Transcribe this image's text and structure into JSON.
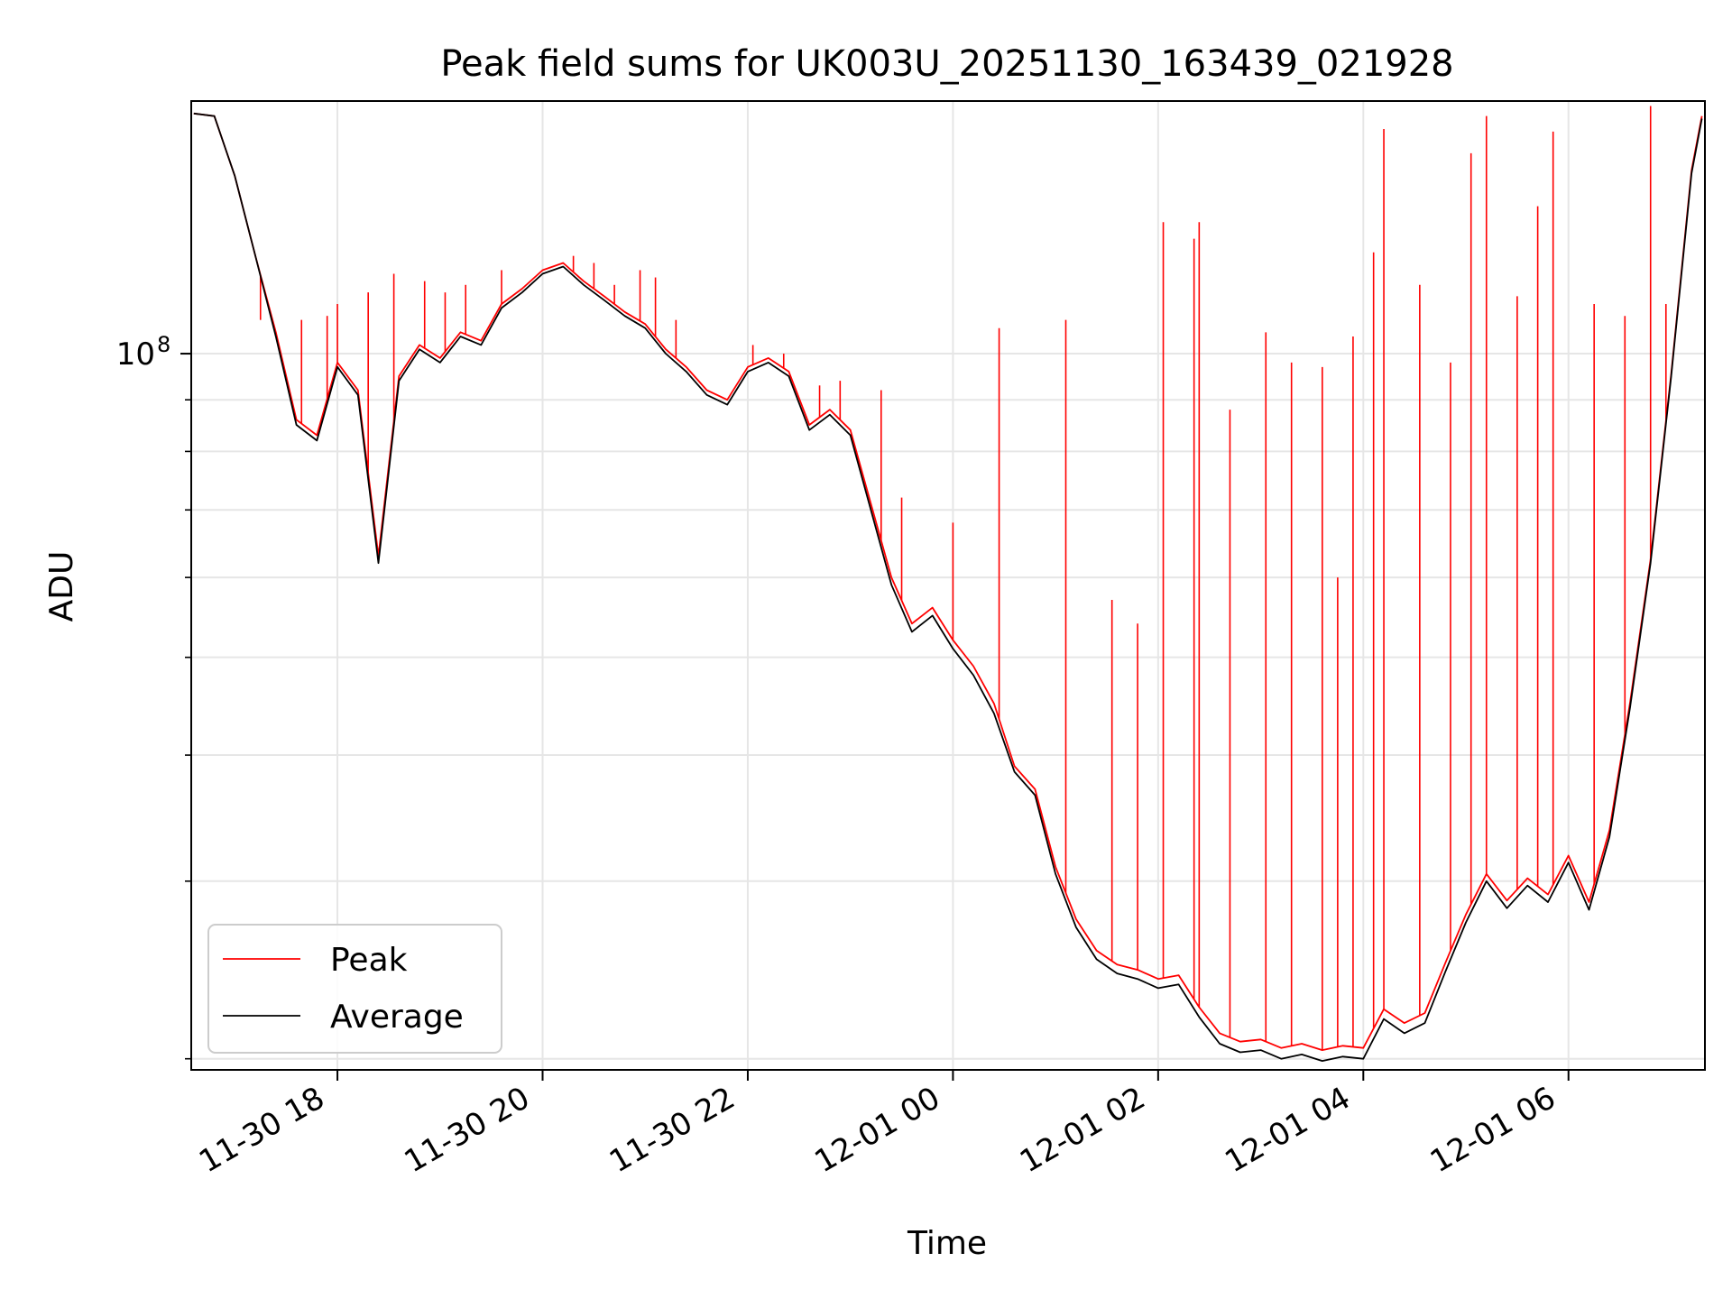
{
  "chart_data": {
    "type": "line",
    "title": "Peak field sums for UK003U_20251130_163439_021928",
    "xlabel": "Time",
    "ylabel": "ADU",
    "yscale": "log",
    "x_unit": "hours since 2025-11-30 00:00",
    "xlim": [
      16.575,
      31.33
    ],
    "ylim": [
      19500000,
      178000000
    ],
    "grid": true,
    "legend_position": "lower-left",
    "x_ticks": [
      {
        "value": 18,
        "label": "11-30 18"
      },
      {
        "value": 20,
        "label": "11-30 20"
      },
      {
        "value": 22,
        "label": "11-30 22"
      },
      {
        "value": 24,
        "label": "12-01 00"
      },
      {
        "value": 26,
        "label": "12-01 02"
      },
      {
        "value": 28,
        "label": "12-01 04"
      },
      {
        "value": 30,
        "label": "12-01 06"
      }
    ],
    "y_major_ticks": [
      {
        "value": 100000000,
        "base": "10",
        "exponent": "8"
      }
    ],
    "y_minor_ticks": [
      20000000,
      30000000,
      40000000,
      50000000,
      60000000,
      70000000,
      80000000,
      90000000,
      200000000
    ],
    "series": [
      {
        "name": "Peak",
        "color": "#ff0000",
        "x": [
          16.6,
          16.8,
          17.0,
          17.2,
          17.4,
          17.6,
          17.8,
          18.0,
          18.2,
          18.4,
          18.6,
          18.8,
          19.0,
          19.2,
          19.4,
          19.6,
          19.8,
          20.0,
          20.2,
          20.4,
          20.6,
          20.8,
          21.0,
          21.2,
          21.4,
          21.6,
          21.8,
          22.0,
          22.2,
          22.4,
          22.6,
          22.8,
          23.0,
          23.2,
          23.4,
          23.6,
          23.8,
          24.0,
          24.2,
          24.4,
          24.6,
          24.8,
          25.0,
          25.2,
          25.4,
          25.6,
          25.8,
          26.0,
          26.2,
          26.4,
          26.6,
          26.8,
          27.0,
          27.2,
          27.4,
          27.6,
          27.8,
          28.0,
          28.2,
          28.4,
          28.6,
          28.8,
          29.0,
          29.2,
          29.4,
          29.6,
          29.8,
          30.0,
          30.2,
          30.4,
          30.6,
          30.8,
          31.0,
          31.2,
          31.3
        ],
        "y": [
          173000000,
          172000000,
          150000000,
          125000000,
          105000000,
          86000000,
          83000000,
          98000000,
          92000000,
          63000000,
          95000000,
          102000000,
          99000000,
          105000000,
          103000000,
          112000000,
          116000000,
          121000000,
          123000000,
          118000000,
          114000000,
          110000000,
          107000000,
          101000000,
          97000000,
          92000000,
          90000000,
          97000000,
          99000000,
          96000000,
          85000000,
          88000000,
          84000000,
          71000000,
          60000000,
          54000000,
          56000000,
          52000000,
          49000000,
          45000000,
          39000000,
          37000000,
          31000000,
          27500000,
          25600000,
          24800000,
          24500000,
          24000000,
          24200000,
          22500000,
          21200000,
          20800000,
          20900000,
          20500000,
          20700000,
          20400000,
          20600000,
          20500000,
          22400000,
          21700000,
          22200000,
          24900000,
          27800000,
          30500000,
          28700000,
          30200000,
          29100000,
          31800000,
          28600000,
          33700000,
          45100000,
          62500000,
          95300000,
          152000000,
          172000000
        ]
      },
      {
        "name": "Average",
        "color": "#000000",
        "x": [
          16.6,
          16.8,
          17.0,
          17.2,
          17.4,
          17.6,
          17.8,
          18.0,
          18.2,
          18.4,
          18.6,
          18.8,
          19.0,
          19.2,
          19.4,
          19.6,
          19.8,
          20.0,
          20.2,
          20.4,
          20.6,
          20.8,
          21.0,
          21.2,
          21.4,
          21.6,
          21.8,
          22.0,
          22.2,
          22.4,
          22.6,
          22.8,
          23.0,
          23.2,
          23.4,
          23.6,
          23.8,
          24.0,
          24.2,
          24.4,
          24.6,
          24.8,
          25.0,
          25.2,
          25.4,
          25.6,
          25.8,
          26.0,
          26.2,
          26.4,
          26.6,
          26.8,
          27.0,
          27.2,
          27.4,
          27.6,
          27.8,
          28.0,
          28.2,
          28.4,
          28.6,
          28.8,
          29.0,
          29.2,
          29.4,
          29.6,
          29.8,
          30.0,
          30.2,
          30.4,
          30.6,
          30.8,
          31.0,
          31.2,
          31.3
        ],
        "y": [
          173000000,
          172000000,
          150000000,
          125000000,
          104000000,
          85000000,
          82000000,
          97000000,
          91000000,
          62000000,
          94000000,
          101000000,
          98000000,
          104000000,
          102000000,
          111000000,
          115000000,
          120000000,
          122000000,
          117000000,
          113000000,
          109000000,
          106000000,
          100000000,
          96000000,
          91000000,
          89000000,
          96000000,
          98000000,
          95000000,
          84000000,
          87000000,
          83000000,
          70000000,
          59000000,
          53000000,
          55000000,
          51000000,
          48000000,
          44000000,
          38500000,
          36500000,
          30500000,
          27000000,
          25100000,
          24300000,
          24000000,
          23500000,
          23700000,
          22000000,
          20700000,
          20300000,
          20400000,
          20000000,
          20200000,
          19900000,
          20100000,
          20000000,
          21900000,
          21200000,
          21700000,
          24400000,
          27300000,
          30000000,
          28200000,
          29700000,
          28600000,
          31300000,
          28100000,
          33200000,
          44600000,
          62000000,
          94800000,
          151000000,
          171000000
        ]
      }
    ],
    "peak_spikes": {
      "x": [
        17.25,
        17.65,
        17.9,
        18.0,
        18.3,
        18.55,
        18.85,
        19.05,
        19.25,
        19.6,
        20.3,
        20.5,
        20.7,
        20.95,
        21.1,
        21.3,
        22.05,
        22.35,
        22.7,
        22.9,
        23.3,
        23.5,
        24.0,
        24.45,
        25.1,
        25.55,
        25.8,
        26.05,
        26.35,
        26.4,
        26.7,
        27.05,
        27.3,
        27.6,
        27.75,
        27.9,
        28.1,
        28.2,
        28.55,
        28.85,
        29.05,
        29.2,
        29.5,
        29.7,
        29.85,
        30.25,
        30.55,
        30.8,
        30.95
      ],
      "y": [
        108000000,
        108000000,
        109000000,
        112000000,
        115000000,
        120000000,
        118000000,
        115000000,
        117000000,
        121000000,
        125000000,
        123000000,
        117000000,
        121000000,
        119000000,
        108000000,
        102000000,
        100000000,
        93000000,
        94000000,
        92000000,
        72000000,
        68000000,
        106000000,
        108000000,
        57000000,
        54000000,
        135000000,
        130000000,
        135000000,
        88000000,
        105000000,
        98000000,
        97000000,
        60000000,
        104000000,
        126000000,
        167000000,
        117000000,
        98000000,
        158000000,
        172000000,
        114000000,
        140000000,
        166000000,
        112000000,
        109000000,
        176000000,
        112000000
      ]
    }
  }
}
